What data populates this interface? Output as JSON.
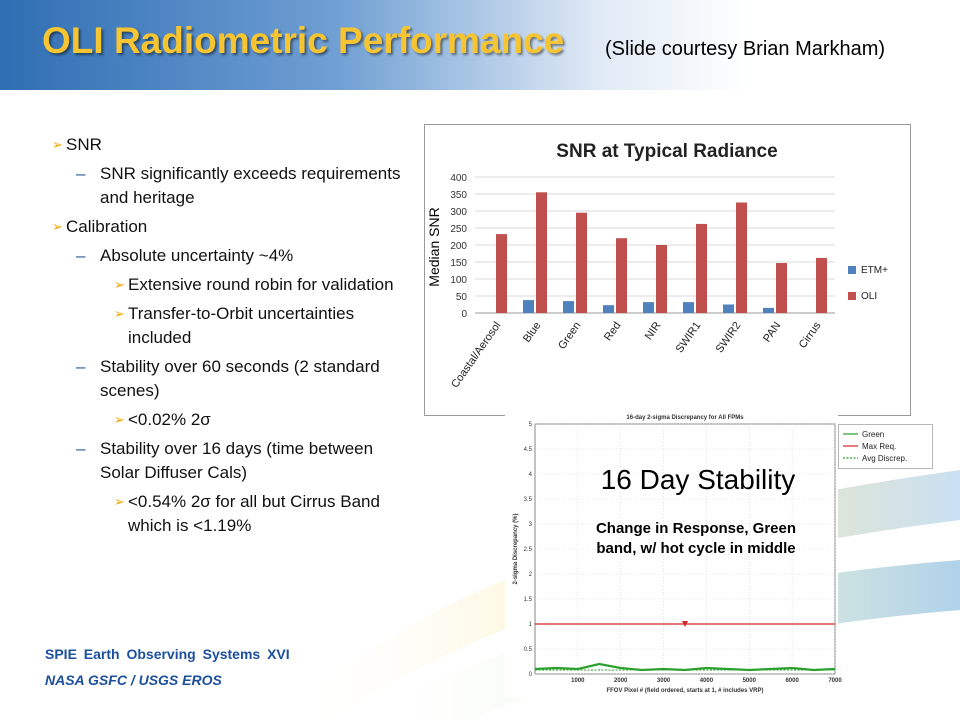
{
  "slide": {
    "title": "OLI Radiometric Performance",
    "subtitle": "(Slide courtesy Brian Markham)",
    "footer_line1": "SPIE Earth Observing Systems XVI",
    "footer_line2": "NASA GSFC / USGS EROS",
    "bullets": [
      {
        "level": 1,
        "text": "SNR"
      },
      {
        "level": 2,
        "text": "SNR significantly exceeds requirements and heritage"
      },
      {
        "level": 1,
        "text": "Calibration"
      },
      {
        "level": 2,
        "text": "Absolute uncertainty ~4%"
      },
      {
        "level": 3,
        "text": "Extensive round robin for validation"
      },
      {
        "level": 3,
        "text": "Transfer-to-Orbit uncertainties included"
      },
      {
        "level": 2,
        "text": "Stability over 60 seconds (2 standard scenes)"
      },
      {
        "level": 3,
        "text": "<0.02% 2σ"
      },
      {
        "level": 2,
        "text": "Stability over 16 days (time between Solar Diffuser Cals)"
      },
      {
        "level": 3,
        "text": "<0.54% 2σ for all but Cirrus Band which is <1.19%"
      }
    ],
    "stability_overlay_title": "16 Day Stability",
    "stability_overlay_subtitle": "Change in Response, Green band, w/ hot cycle in middle"
  },
  "chart_data": [
    {
      "type": "bar",
      "title": "SNR at Typical Radiance",
      "ylabel": "Median SNR",
      "xlabel": "",
      "categories": [
        "Coastal/Aerosol",
        "Blue",
        "Green",
        "Red",
        "NIR",
        "SWIR1",
        "SWIR2",
        "PAN",
        "Cirrus"
      ],
      "series": [
        {
          "name": "ETM+",
          "color": "#4f81bd",
          "values": [
            null,
            38,
            35,
            23,
            32,
            32,
            25,
            15,
            null
          ]
        },
        {
          "name": "OLI",
          "color": "#c0504d",
          "values": [
            232,
            355,
            295,
            220,
            200,
            262,
            325,
            147,
            162
          ]
        }
      ],
      "ylim": [
        0,
        400
      ],
      "yticks": [
        0,
        50,
        100,
        150,
        200,
        250,
        300,
        350,
        400
      ],
      "grid": true,
      "legend": "right"
    },
    {
      "type": "line",
      "title": "16-day 2-sigma Discrepancy for All FPMs",
      "xlabel": "FFOV Pixel # (field ordered, starts at 1, # includes VRP)",
      "ylabel": "2-sigma Discrepancy (%)",
      "xlim": [
        0,
        7000
      ],
      "ylim": [
        0,
        5
      ],
      "xticks": [
        1000,
        2000,
        3000,
        4000,
        5000,
        6000,
        7000
      ],
      "yticks": [
        0,
        0.5,
        1,
        1.5,
        2,
        2.5,
        3,
        3.5,
        4,
        4.5,
        5
      ],
      "grid": true,
      "legend": "top-right",
      "series": [
        {
          "name": "Green",
          "color": "#2ca02c",
          "x": [
            0,
            500,
            1000,
            1500,
            2000,
            2500,
            3000,
            3500,
            4000,
            4500,
            5000,
            5500,
            6000,
            6500,
            7000
          ],
          "y": [
            0.1,
            0.12,
            0.1,
            0.2,
            0.12,
            0.08,
            0.1,
            0.08,
            0.12,
            0.1,
            0.08,
            0.1,
            0.12,
            0.08,
            0.1
          ]
        },
        {
          "name": "Max Req.",
          "color": "#d62728",
          "x": [
            0,
            7000
          ],
          "y": [
            1,
            1
          ]
        },
        {
          "name": "Avg Discrep.",
          "color": "#2ca02c",
          "x": [
            0,
            7000
          ],
          "y": [
            0.08,
            0.08
          ]
        }
      ]
    }
  ]
}
